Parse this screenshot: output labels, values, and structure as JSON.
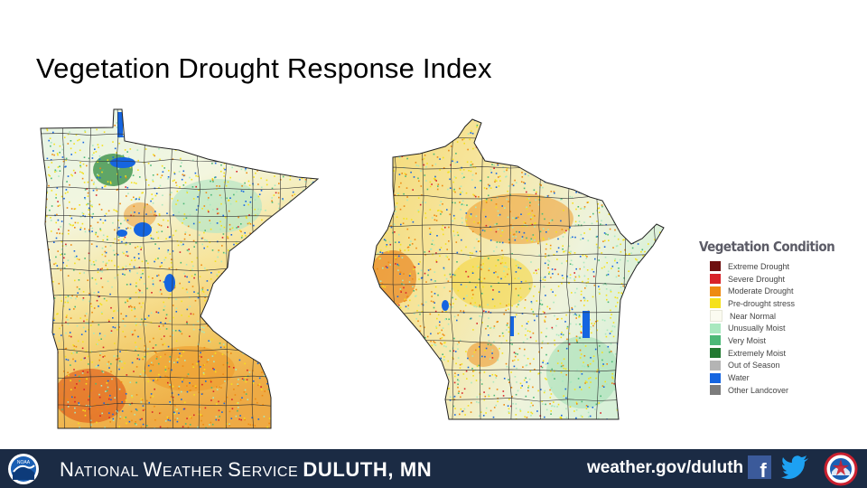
{
  "title": "Vegetation Drought Response Index",
  "legend": {
    "title": "Vegetation Condition",
    "items": [
      {
        "label": "Extreme Drought",
        "color": "#6e1010"
      },
      {
        "label": "Severe Drought",
        "color": "#d8232a"
      },
      {
        "label": "Moderate Drought",
        "color": "#ee8a12"
      },
      {
        "label": "Pre-drought stress",
        "color": "#f5e11c"
      },
      {
        "label": "Near Normal",
        "color": "#fbfbf1"
      },
      {
        "label": "Unusually Moist",
        "color": "#a8e8bf"
      },
      {
        "label": "Very Moist",
        "color": "#4cb877"
      },
      {
        "label": "Extremely Moist",
        "color": "#237a32"
      },
      {
        "label": "Out of Season",
        "color": "#b4b4b4"
      },
      {
        "label": "Water",
        "color": "#1565e0"
      },
      {
        "label": "Other Landcover",
        "color": "#7c7c7c"
      }
    ]
  },
  "footer": {
    "agency_first": "N",
    "agency_rest": "ATIONAL ",
    "word2_first": "W",
    "word2_rest": "EATHER ",
    "word3_first": "S",
    "word3_rest": "ERVICE ",
    "office": "DULUTH, MN",
    "site": "weather.gov/duluth",
    "noaa_logo_text": "NOAA",
    "facebook_icon": "f"
  }
}
